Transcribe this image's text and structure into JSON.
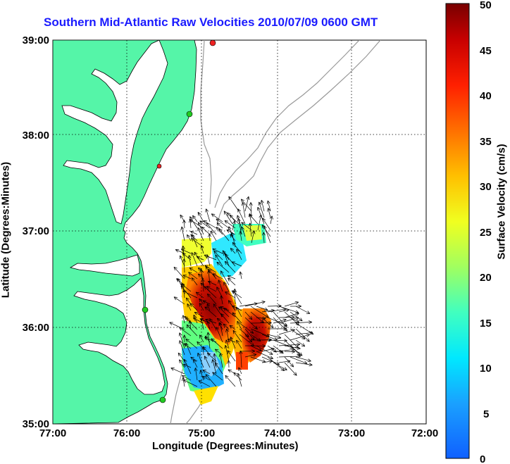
{
  "title": "Southern Mid-Atlantic Raw Velocities 2010/07/09 0600 GMT",
  "xlabel": "Longitude (Degrees:Minutes)",
  "ylabel": "Latitude (Degrees:Minutes)",
  "colorbar": {
    "label": "Surface Velocity (cm/s)",
    "ticks": [
      "0",
      "5",
      "10",
      "15",
      "20",
      "25",
      "30",
      "35",
      "40",
      "45",
      "50"
    ],
    "min": 0,
    "max": 50
  },
  "x_ticks": [
    "77:00",
    "76:00",
    "75:00",
    "74:00",
    "73:00",
    "72:00"
  ],
  "y_ticks": [
    "39:00",
    "38:00",
    "37:00",
    "36:00",
    "35:00"
  ],
  "colors": {
    "land": "#55f5a8",
    "coastline": "#000000",
    "bathymetry": "#999999",
    "title": "#1a1aff",
    "station_green": "#22cc22",
    "station_red": "#ee2222"
  },
  "stations": [
    {
      "lon": -74.85,
      "lat": 38.95,
      "status": "active-red"
    },
    {
      "lon": -75.1,
      "lat": 38.22,
      "status": "active-green"
    },
    {
      "lon": -75.5,
      "lat": 37.7,
      "status": "active-red"
    },
    {
      "lon": -75.7,
      "lat": 36.2,
      "status": "active-green"
    },
    {
      "lon": -75.5,
      "lat": 35.25,
      "status": "active-green"
    }
  ]
}
